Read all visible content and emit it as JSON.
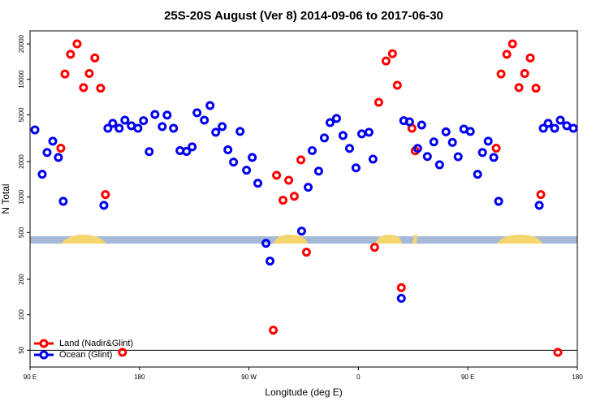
{
  "chart_data": {
    "type": "scatter",
    "title": "25S-20S August (Ver 8)   2014-09-06 to 2017-06-30",
    "x_label": "Longitude (deg E)",
    "y_label": "N Total",
    "log_y": true,
    "xlim": [
      90,
      540
    ],
    "ylim": [
      36,
      25800
    ],
    "xticks": [
      {
        "value": 90,
        "label": "90 E"
      },
      {
        "value": 180,
        "label": "180"
      },
      {
        "value": 270,
        "label": "90 W"
      },
      {
        "value": 360,
        "label": "0"
      },
      {
        "value": 450,
        "label": "90 E"
      },
      {
        "value": 540,
        "label": "180"
      }
    ],
    "yticks": [
      50,
      100,
      200,
      500,
      1000,
      2000,
      5000,
      10000,
      20000
    ],
    "hline": 50,
    "legend": "bottom-left",
    "series": [
      {
        "name": "Land (Nadir&Glint)",
        "color": "#ff0000",
        "x": [
          115.3,
          118.7,
          123.3,
          128.7,
          134,
          138.7,
          143.3,
          148,
          152,
          166,
          290,
          292.7,
          298,
          302.7,
          307.3,
          312.7,
          317.3,
          373.3,
          376.7,
          382.7,
          388,
          392,
          395.3,
          404,
          406.7,
          473.3,
          477.3,
          482,
          486.7,
          492,
          496.7,
          501.3,
          506,
          510,
          524
        ],
        "values": [
          2600,
          11100,
          16300,
          20000,
          8500,
          11200,
          15200,
          8400,
          1050,
          48,
          74,
          1530,
          940,
          1390,
          1015,
          2070,
          340,
          374,
          6380,
          14300,
          16500,
          8900,
          170,
          3840,
          2470,
          2600,
          11100,
          16300,
          20000,
          8500,
          11200,
          15200,
          8400,
          1050,
          48
        ]
      },
      {
        "name": "Ocean (Glint)",
        "color": "#0000ee",
        "x": [
          94,
          100,
          104,
          108.7,
          113.3,
          117.3,
          150.7,
          154,
          158,
          163.3,
          168,
          173.3,
          178.7,
          183.3,
          188,
          192.7,
          198.7,
          202.7,
          208,
          213.3,
          218.7,
          223.3,
          227.3,
          233.3,
          238,
          242.7,
          248,
          252.7,
          257.3,
          262.7,
          268,
          272.7,
          277.3,
          284,
          287.3,
          313.3,
          318.7,
          322,
          327.3,
          332,
          336.7,
          342,
          347.3,
          352.7,
          358,
          362.7,
          368.7,
          372,
          395.3,
          397.3,
          402,
          408.7,
          412,
          416.7,
          422,
          426.7,
          432,
          437.3,
          442,
          446.7,
          452,
          458,
          462,
          466.7,
          471.3,
          475.3,
          508.7,
          512,
          516,
          521.3,
          526,
          531.3,
          536.7
        ],
        "values": [
          3720,
          1560,
          2390,
          2980,
          2170,
          920,
          850,
          3840,
          4230,
          3840,
          4500,
          4030,
          3840,
          4450,
          2430,
          5030,
          3970,
          4970,
          3840,
          2480,
          2440,
          2670,
          5200,
          4500,
          5990,
          3550,
          3970,
          2520,
          1980,
          3610,
          1690,
          2170,
          1310,
          405,
          286,
          514,
          1210,
          2480,
          1660,
          3180,
          4290,
          4650,
          3330,
          2590,
          1770,
          3440,
          3550,
          2100,
          138,
          4450,
          4360,
          2590,
          4090,
          2210,
          2940,
          1880,
          3580,
          2910,
          2200,
          3780,
          3610,
          1560,
          2390,
          2980,
          2170,
          920,
          850,
          3840,
          4230,
          3840,
          4500,
          4030,
          3840
        ]
      }
    ]
  }
}
